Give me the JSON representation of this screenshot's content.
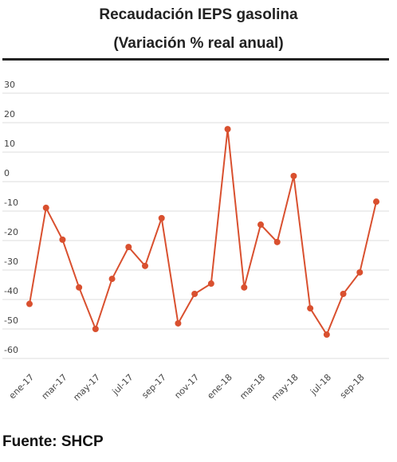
{
  "chart_data": {
    "type": "line",
    "title": "Recaudación IEPS gasolina",
    "subtitle": "(Variación % real anual)",
    "source": "Fuente: SHCP",
    "categories": [
      "ene-17",
      null,
      "mar-17",
      null,
      "may-17",
      null,
      "jul-17",
      null,
      "sep-17",
      null,
      "nov-17",
      null,
      "ene-18",
      null,
      "mar-18",
      null,
      "may-18",
      null,
      "jul-18",
      null,
      "sep-18",
      null
    ],
    "values": [
      -41.5,
      -8.9,
      -19.7,
      -35.9,
      -50,
      -33,
      -22.2,
      -28.6,
      -12.4,
      -48.1,
      -38.1,
      -34.6,
      17.8,
      -35.9,
      -14.6,
      -20.5,
      1.9,
      -43,
      -51.9,
      -38.1,
      -30.8,
      -6.8
    ],
    "color": "#d9502f",
    "ylim": [
      -60,
      30
    ],
    "yticks": [
      30,
      20,
      10,
      0,
      -10,
      -20,
      -30,
      -40,
      -50,
      -60
    ],
    "grid": true
  }
}
